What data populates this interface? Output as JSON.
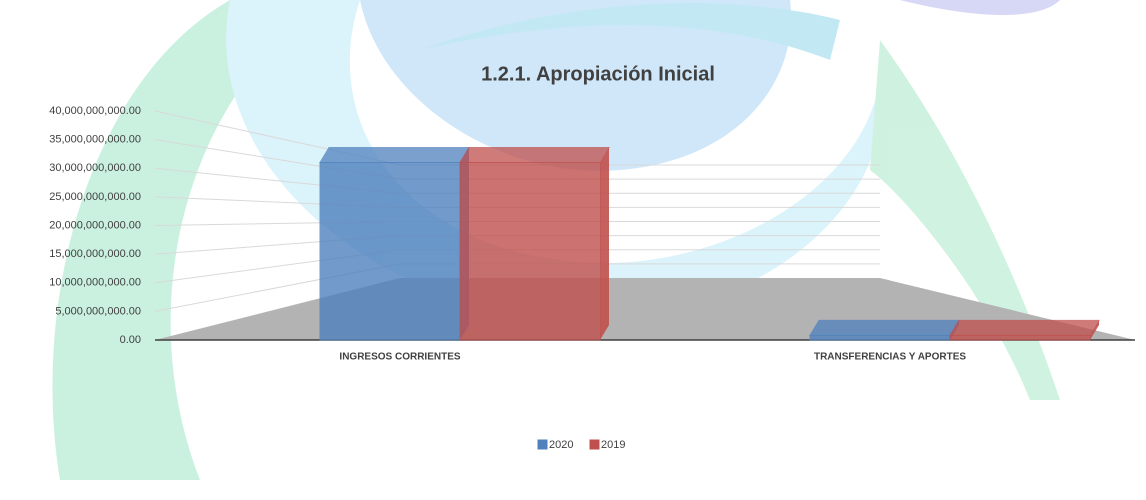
{
  "chart_data": {
    "type": "bar3d",
    "title": "1.2.1. Apropiación Inicial",
    "categories": [
      "INGRESOS CORRIENTES",
      "TRANSFERENCIAS Y APORTES"
    ],
    "series": [
      {
        "name": "2020",
        "color": "#4f81bd",
        "values": [
          31000000000,
          800000000
        ]
      },
      {
        "name": "2019",
        "color": "#c0504d",
        "values": [
          31000000000,
          800000000
        ]
      }
    ],
    "ylim": [
      0,
      40000000000
    ],
    "yticks": [
      {
        "value": 0,
        "label": "0.00"
      },
      {
        "value": 5000000000,
        "label": "5,000,000,000.00"
      },
      {
        "value": 10000000000,
        "label": "10,000,000,000.00"
      },
      {
        "value": 15000000000,
        "label": "15,000,000,000.00"
      },
      {
        "value": 20000000000,
        "label": "20,000,000,000.00"
      },
      {
        "value": 25000000000,
        "label": "25,000,000,000.00"
      },
      {
        "value": 30000000000,
        "label": "30,000,000,000.00"
      },
      {
        "value": 35000000000,
        "label": "35,000,000,000.00"
      },
      {
        "value": 40000000000,
        "label": "40,000,000,000.00"
      }
    ],
    "grid": true,
    "legend": "bottom"
  }
}
